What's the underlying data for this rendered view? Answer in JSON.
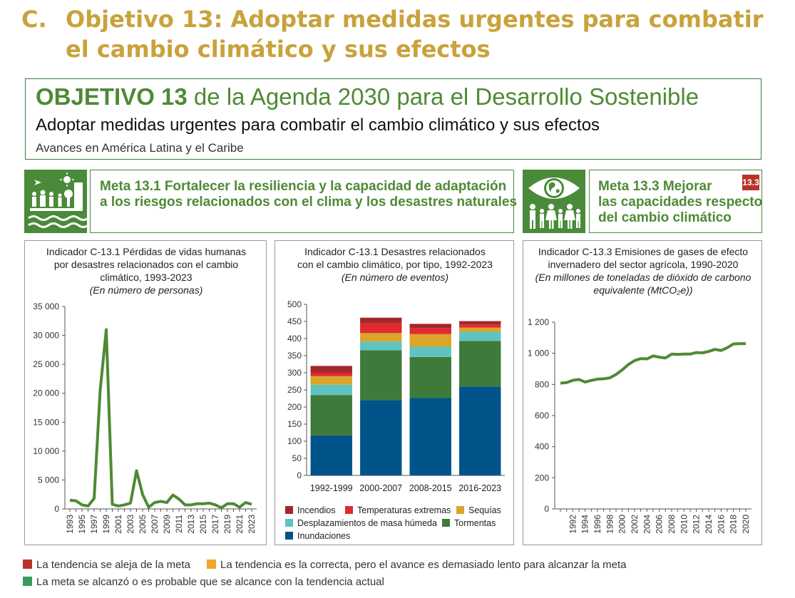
{
  "section": {
    "letter": "C.",
    "title_line1": "Objetivo 13: Adoptar medidas urgentes para combatir",
    "title_line2": "el cambio climático y sus efectos"
  },
  "agenda": {
    "heading_bold": "OBJETIVO 13",
    "heading_rest": " de la Agenda 2030 para el Desarrollo Sostenible",
    "subtitle": "Adoptar medidas urgentes para combatir el cambio climático y sus efectos",
    "region": "Avances en América Latina y el Caribe"
  },
  "metas": [
    {
      "line1": "Meta 13.1 Fortalecer la resiliencia y la capacidad de adaptación",
      "line2": "a los riesgos relacionados con el clima y los desastres naturales"
    },
    {
      "line1": "Meta 13.3 Mejorar",
      "line2": "las capacidades respecto",
      "line3": "del cambio climático",
      "badge": "13.3",
      "badge_color": "#b8322a"
    }
  ],
  "chart_data": [
    {
      "type": "line",
      "title_lines": [
        "Indicador C-13.1 Pérdidas de vidas humanas",
        "por desastres relacionados con el cambio",
        "climático, 1993-2023"
      ],
      "subtitle": "(En número de personas)",
      "x": [
        1993,
        1994,
        1995,
        1996,
        1997,
        1998,
        1999,
        2000,
        2001,
        2002,
        2003,
        2004,
        2005,
        2006,
        2007,
        2008,
        2009,
        2010,
        2011,
        2012,
        2013,
        2014,
        2015,
        2016,
        2017,
        2018,
        2019,
        2020,
        2021,
        2022,
        2023
      ],
      "values": [
        1500,
        1400,
        700,
        500,
        1800,
        20500,
        31000,
        800,
        500,
        700,
        1000,
        6600,
        2500,
        300,
        1100,
        1300,
        1100,
        2400,
        1700,
        700,
        700,
        900,
        900,
        1000,
        700,
        200,
        900,
        900,
        300,
        1100,
        800
      ],
      "x_tick_labels": [
        "1993",
        "1995",
        "1997",
        "1999",
        "2001",
        "2003",
        "2005",
        "2007",
        "2009",
        "2011",
        "2013",
        "2015",
        "2017",
        "2019",
        "2021",
        "2023"
      ],
      "y_ticks": [
        0,
        5000,
        10000,
        15000,
        20000,
        25000,
        30000,
        35000
      ],
      "y_tick_labels": [
        "0",
        "5 000",
        "10 000",
        "15 000",
        "20 000",
        "25 000",
        "30 000",
        "35 000"
      ],
      "ylim": [
        0,
        35000
      ],
      "color": "#4e8a35",
      "trend": "meta-alcanzada"
    },
    {
      "type": "bar",
      "stacked": true,
      "title_lines": [
        "Indicador C-13.1 Desastres relacionados",
        "con el cambio climático, por tipo, 1992-2023"
      ],
      "subtitle": "(En número de eventos)",
      "categories": [
        "1992-1999",
        "2000-2007",
        "2008-2015",
        "2016-2023"
      ],
      "series": [
        {
          "name": "Inundaciones",
          "color": "#00548a",
          "values": [
            117,
            220,
            226,
            260
          ]
        },
        {
          "name": "Tormentas",
          "color": "#3e7a3a",
          "values": [
            118,
            146,
            120,
            133
          ]
        },
        {
          "name": "Desplazamientos de masa húmeda",
          "color": "#5ec3c2",
          "values": [
            30,
            25,
            30,
            27
          ]
        },
        {
          "name": "Sequías",
          "color": "#d9a62b",
          "values": [
            25,
            25,
            37,
            12
          ]
        },
        {
          "name": "Temperaturas extremas",
          "color": "#e02a2e",
          "values": [
            10,
            30,
            18,
            9
          ]
        },
        {
          "name": "Incendios",
          "color": "#a2272d",
          "values": [
            20,
            15,
            12,
            10
          ]
        }
      ],
      "legend_order": [
        "Incendios",
        "Temperaturas extremas",
        "Sequías",
        "Desplazamientos de masa húmeda",
        "Tormentas",
        "Inundaciones"
      ],
      "y_ticks": [
        0,
        50,
        100,
        150,
        200,
        250,
        300,
        350,
        400,
        450,
        500
      ],
      "ylim": [
        0,
        500
      ],
      "legend_placement": "bottom"
    },
    {
      "type": "line",
      "title_lines": [
        "Indicador C-13.3 Emisiones de gases de efecto",
        "invernadero del sector agrícola, 1990-2020"
      ],
      "subtitle_lines": [
        "(En millones de toneladas de dióxido de carbono",
        "equivalente (MtCO₂e))"
      ],
      "x": [
        1990,
        1991,
        1992,
        1993,
        1994,
        1995,
        1996,
        1997,
        1998,
        1999,
        2000,
        2001,
        2002,
        2003,
        2004,
        2005,
        2006,
        2007,
        2008,
        2009,
        2010,
        2011,
        2012,
        2013,
        2014,
        2015,
        2016,
        2017,
        2018,
        2019,
        2020
      ],
      "values": [
        808,
        812,
        826,
        832,
        815,
        826,
        834,
        836,
        842,
        864,
        893,
        928,
        953,
        966,
        964,
        983,
        975,
        970,
        995,
        993,
        995,
        995,
        1005,
        1003,
        1012,
        1025,
        1018,
        1036,
        1060,
        1062,
        1062
      ],
      "x_tick_labels": [
        "1992",
        "1994",
        "1996",
        "1998",
        "2000",
        "2002",
        "2004",
        "2006",
        "2008",
        "2010",
        "2012",
        "2014",
        "2016",
        "2018",
        "2020"
      ],
      "y_ticks": [
        0,
        200,
        400,
        600,
        800,
        1000,
        1200
      ],
      "y_tick_labels": [
        "0",
        "200",
        "400",
        "600",
        "800",
        "1 000",
        "1 200"
      ],
      "ylim": [
        0,
        1200
      ],
      "color": "#4e8a35",
      "trend": "meta-alcanzada"
    }
  ],
  "legend": [
    {
      "color": "#b8322a",
      "label": "La tendencia se aleja de la meta"
    },
    {
      "color": "#f3a52b",
      "label": "La tendencia es la correcta, pero el avance es demasiado lento para alcanzar la meta"
    },
    {
      "color": "#3a9a5a",
      "label": "La meta se alcanzó o es probable que se alcance con la tendencia actual"
    }
  ]
}
